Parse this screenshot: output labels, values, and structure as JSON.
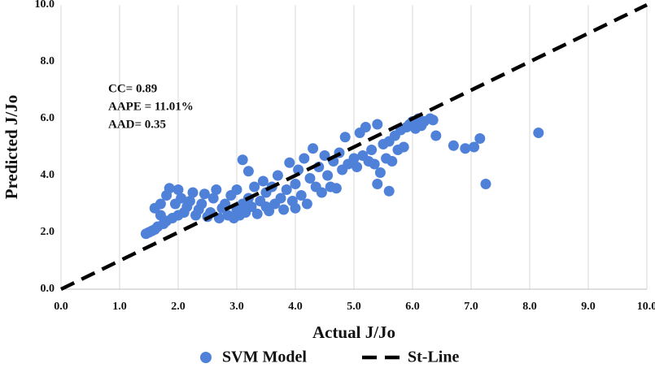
{
  "chart_data": {
    "type": "scatter",
    "x_label": "Actual J/Jo",
    "y_label": "Predicted J/Jo",
    "annotations": [
      "CC= 0.89",
      "AAPE = 11.01%",
      "AAD= 0.35"
    ],
    "xlim": [
      0,
      10
    ],
    "ylim": [
      0,
      10
    ],
    "xticks": [
      {
        "value": 0,
        "label": "0.0"
      },
      {
        "value": 1,
        "label": "1.0"
      },
      {
        "value": 2,
        "label": "2.0"
      },
      {
        "value": 3,
        "label": "3.0"
      },
      {
        "value": 4,
        "label": "4.0"
      },
      {
        "value": 5,
        "label": "5.0"
      },
      {
        "value": 6,
        "label": "6.0"
      },
      {
        "value": 7,
        "label": "7.0"
      },
      {
        "value": 8,
        "label": "8.0"
      },
      {
        "value": 9,
        "label": "9.0"
      },
      {
        "value": 10,
        "label": "10.0"
      }
    ],
    "yticks": [
      {
        "value": 0,
        "label": "0.0"
      },
      {
        "value": 2,
        "label": "2.0"
      },
      {
        "value": 4,
        "label": "4.0"
      },
      {
        "value": 6,
        "label": "6.0"
      },
      {
        "value": 8,
        "label": "8.0"
      },
      {
        "value": 10,
        "label": "10.0"
      }
    ],
    "grid": "x",
    "legend": "bottom",
    "series": [
      {
        "name": "SVM Model",
        "color": "#4f81d9",
        "style": "markers",
        "x": [
          1.45,
          1.5,
          1.55,
          1.6,
          1.6,
          1.65,
          1.7,
          1.7,
          1.75,
          1.8,
          1.8,
          1.85,
          1.9,
          1.95,
          2.0,
          2.0,
          2.05,
          2.1,
          2.15,
          2.2,
          2.25,
          2.3,
          2.35,
          2.4,
          2.45,
          2.5,
          2.55,
          2.6,
          2.65,
          2.7,
          2.75,
          2.8,
          2.85,
          2.9,
          2.95,
          3.0,
          3.0,
          3.05,
          3.1,
          3.1,
          3.15,
          3.2,
          3.2,
          3.25,
          3.3,
          3.35,
          3.4,
          3.45,
          3.5,
          3.5,
          3.55,
          3.6,
          3.65,
          3.7,
          3.75,
          3.8,
          3.85,
          3.9,
          3.95,
          4.0,
          4.0,
          4.05,
          4.1,
          4.15,
          4.2,
          4.25,
          4.3,
          4.35,
          4.4,
          4.45,
          4.5,
          4.55,
          4.6,
          4.65,
          4.7,
          4.75,
          4.8,
          4.85,
          4.9,
          5.0,
          5.05,
          5.1,
          5.15,
          5.2,
          5.25,
          5.3,
          5.35,
          5.4,
          5.4,
          5.45,
          5.5,
          5.55,
          5.6,
          5.6,
          5.65,
          5.7,
          5.75,
          5.8,
          5.85,
          5.9,
          5.95,
          6.0,
          6.05,
          6.1,
          6.15,
          6.2,
          6.3,
          6.35,
          6.4,
          6.7,
          6.9,
          7.05,
          7.15,
          7.25,
          8.15
        ],
        "values": [
          1.95,
          2.0,
          2.05,
          2.1,
          2.85,
          2.2,
          2.6,
          3.0,
          2.3,
          2.4,
          3.3,
          3.55,
          2.5,
          3.0,
          2.6,
          3.5,
          3.2,
          2.7,
          2.9,
          3.1,
          3.4,
          2.6,
          2.8,
          3.0,
          3.35,
          2.55,
          2.7,
          3.2,
          3.5,
          2.5,
          2.85,
          3.0,
          2.6,
          3.3,
          2.5,
          2.8,
          3.5,
          2.6,
          4.55,
          3.0,
          2.7,
          3.2,
          4.15,
          2.9,
          3.6,
          2.65,
          3.1,
          3.8,
          2.9,
          3.4,
          2.75,
          3.6,
          3.0,
          4.0,
          3.2,
          2.8,
          3.5,
          4.45,
          3.1,
          3.7,
          2.85,
          4.2,
          3.3,
          4.6,
          3.0,
          3.9,
          4.95,
          3.6,
          4.3,
          3.4,
          4.7,
          4.0,
          3.6,
          4.5,
          3.55,
          4.8,
          4.2,
          5.35,
          4.4,
          4.6,
          4.3,
          5.5,
          4.7,
          5.7,
          4.5,
          4.9,
          4.4,
          5.8,
          3.7,
          4.1,
          5.1,
          4.6,
          3.45,
          5.2,
          4.5,
          5.4,
          4.9,
          5.6,
          5.0,
          5.7,
          5.8,
          5.9,
          5.65,
          6.0,
          5.75,
          5.9,
          6.0,
          5.95,
          5.4,
          5.05,
          4.95,
          5.0,
          5.3,
          3.7,
          5.5
        ]
      },
      {
        "name": "St-Line",
        "color": "#000000",
        "style": "dashed",
        "x": [
          0,
          10
        ],
        "values": [
          0,
          10
        ]
      }
    ]
  }
}
